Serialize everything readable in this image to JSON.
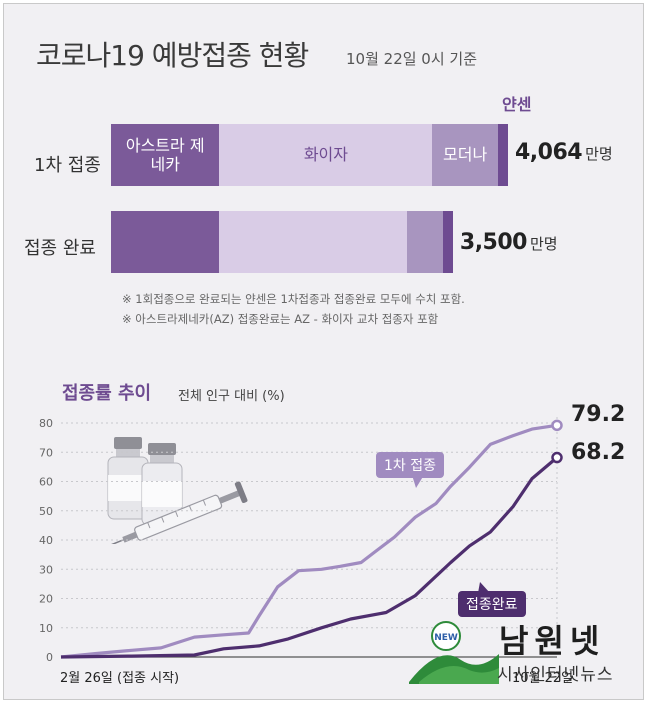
{
  "header": {
    "title": "코로나19 예방접종 현황",
    "date": "10월 22일 0시 기준"
  },
  "vaccines": {
    "row1_label": "1차 접종",
    "row2_label": "접종 완료",
    "astra": "아스트라 제네카",
    "pfizer": "화이자",
    "moderna": "모더나",
    "janssen": "얀센",
    "row1_total": "4,064",
    "row2_total": "3,500",
    "unit": "만명"
  },
  "notes": {
    "note1": "※ 1회접종으로 완료되는 얀센은 1차접종과 접종완료 모두에 수치 포함.",
    "note2": "※ 아스트라제네카(AZ) 접종완료는 AZ - 화이자 교차 접종자 포함"
  },
  "line": {
    "title": "접종률 추이",
    "subtitle": "전체 인구 대비 (%)",
    "first_label": "1차 접종",
    "full_label": "접종완료",
    "first_end": "79.2",
    "full_end": "68.2",
    "start_label": "2월 26일 (접종 시작)",
    "end_label": "10월 22일"
  },
  "colors": {
    "astra": "#7b5a99",
    "pfizer": "#d9cce6",
    "moderna": "#a895bf",
    "janssen": "#6e4b91",
    "first_line": "#a08bc0",
    "full_line": "#4e2e6e"
  },
  "icons": [
    "vaccine-vial-icon",
    "syringe-icon",
    "logo-emblem-icon"
  ],
  "logo": {
    "name": "남원넷",
    "tagline": "시사인터넷뉴스",
    "badge": "NEW"
  },
  "chart_data": [
    {
      "type": "bar",
      "orientation": "horizontal",
      "stacked": true,
      "categories": [
        "1차 접종",
        "접종 완료"
      ],
      "series": [
        {
          "name": "아스트라 제네카",
          "values": [
            1110,
            1110
          ]
        },
        {
          "name": "화이자",
          "values": [
            2180,
            1920
          ]
        },
        {
          "name": "모더나",
          "values": [
            670,
            370
          ]
        },
        {
          "name": "얀센",
          "values": [
            104,
            100
          ]
        }
      ],
      "totals": [
        4064,
        3500
      ],
      "unit": "만명"
    },
    {
      "type": "line",
      "title": "접종률 추이",
      "ylabel": "전체 인구 대비 (%)",
      "ylim": [
        0,
        80
      ],
      "yticks": [
        0,
        10,
        20,
        30,
        40,
        50,
        60,
        70,
        80
      ],
      "xlim": [
        "2021-02-26",
        "2021-10-22"
      ],
      "grid": true,
      "series": [
        {
          "name": "1차 접종",
          "x": [
            "2021-02-26",
            "2021-03-15",
            "2021-04-01",
            "2021-04-15",
            "2021-05-01",
            "2021-05-15",
            "2021-05-27",
            "2021-06-01",
            "2021-06-10",
            "2021-06-20",
            "2021-07-01",
            "2021-07-10",
            "2021-07-20",
            "2021-07-26",
            "2021-08-05",
            "2021-08-15",
            "2021-08-25",
            "2021-09-01",
            "2021-09-10",
            "2021-09-20",
            "2021-10-01",
            "2021-10-10",
            "2021-10-22"
          ],
          "values": [
            0,
            1.2,
            2.3,
            3.1,
            6.8,
            7.6,
            8.2,
            14,
            24,
            29.5,
            30,
            31,
            32.3,
            35.6,
            41,
            47.8,
            52.5,
            58.4,
            64.9,
            72.7,
            75.7,
            77.9,
            79.2
          ]
        },
        {
          "name": "접종완료",
          "x": [
            "2021-02-26",
            "2021-04-01",
            "2021-05-01",
            "2021-05-15",
            "2021-06-01",
            "2021-06-15",
            "2021-07-01",
            "2021-07-15",
            "2021-08-01",
            "2021-08-15",
            "2021-09-01",
            "2021-09-10",
            "2021-09-20",
            "2021-10-01",
            "2021-10-10",
            "2021-10-22"
          ],
          "values": [
            0,
            0.3,
            0.7,
            2.8,
            3.8,
            6.2,
            10,
            13,
            15.2,
            21,
            32.3,
            38,
            42.7,
            51.5,
            61,
            68.2
          ]
        }
      ]
    }
  ]
}
